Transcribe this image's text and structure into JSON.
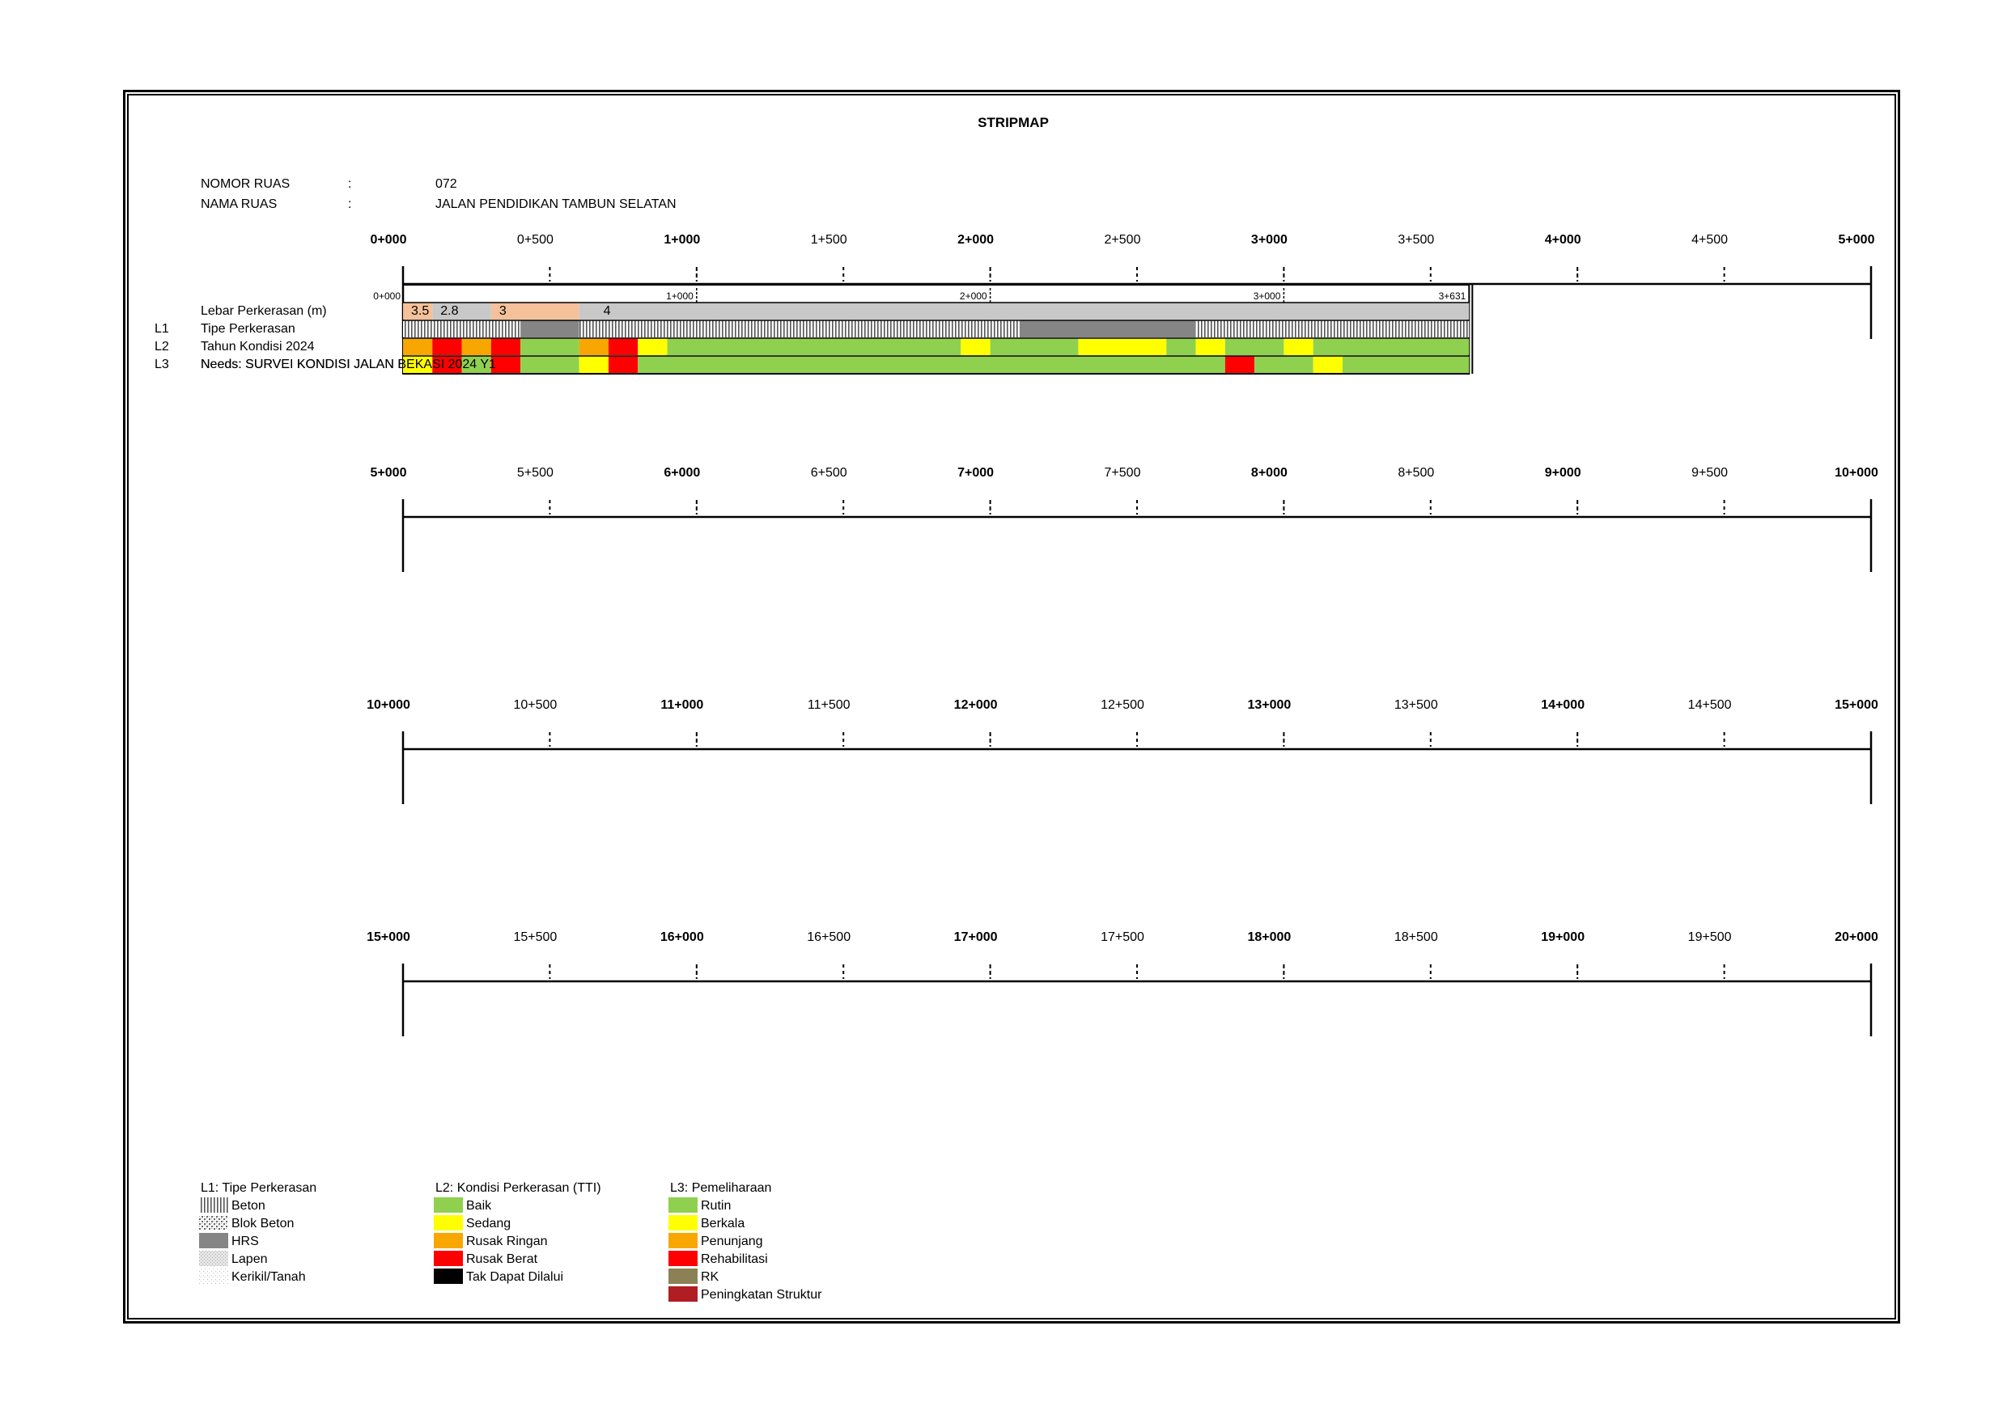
{
  "title": "STRIPMAP",
  "header": {
    "nomor_ruas_label": "NOMOR RUAS",
    "nomor_ruas_sep": ":",
    "nomor_ruas_value": "072",
    "nama_ruas_label": "NAMA RUAS",
    "nama_ruas_sep": ":",
    "nama_ruas_value": "JALAN PENDIDIKAN TAMBUN SELATAN"
  },
  "axis_rows": [
    {
      "labels": [
        "0+000",
        "0+500",
        "1+000",
        "1+500",
        "2+000",
        "2+500",
        "3+000",
        "3+500",
        "4+000",
        "4+500",
        "5+000"
      ]
    },
    {
      "labels": [
        "5+000",
        "5+500",
        "6+000",
        "6+500",
        "7+000",
        "7+500",
        "8+000",
        "8+500",
        "9+000",
        "9+500",
        "10+000"
      ]
    },
    {
      "labels": [
        "10+000",
        "10+500",
        "11+000",
        "11+500",
        "12+000",
        "12+500",
        "13+000",
        "13+500",
        "14+000",
        "14+500",
        "15+000"
      ]
    },
    {
      "labels": [
        "15+000",
        "15+500",
        "16+000",
        "16+500",
        "17+000",
        "17+500",
        "18+000",
        "18+500",
        "19+000",
        "19+500",
        "20+000"
      ]
    }
  ],
  "road": {
    "length_km": 3.631,
    "inner_ticks": [
      {
        "km": 0,
        "label": "0+000"
      },
      {
        "km": 1,
        "label": "1+000"
      },
      {
        "km": 2,
        "label": "2+000"
      },
      {
        "km": 3,
        "label": "3+000"
      },
      {
        "km": 3.631,
        "label": "3+631"
      }
    ],
    "rows": [
      {
        "code": "",
        "label": "Lebar Perkerasan (m)"
      },
      {
        "code": "L1",
        "label": "Tipe Perkerasan"
      },
      {
        "code": "L2",
        "label": "Tahun Kondisi 2024"
      },
      {
        "code": "L3",
        "label": "Needs: SURVEI KONDISI JALAN BEKASI 2024 Y1"
      }
    ],
    "width_segments": [
      {
        "from": 0,
        "to": 0.1,
        "value": "3.5",
        "color": "#f4c19a"
      },
      {
        "from": 0.1,
        "to": 0.3,
        "value": "2.8",
        "color": "#c8c8c8"
      },
      {
        "from": 0.3,
        "to": 0.6,
        "value": "3",
        "color": "#f4c19a"
      },
      {
        "from": 0.6,
        "to": 3.631,
        "value": "4",
        "color": "#c8c8c8"
      }
    ],
    "surface_segments": [
      {
        "from": 0,
        "to": 0.4,
        "type": "Beton"
      },
      {
        "from": 0.4,
        "to": 0.6,
        "type": "HRS"
      },
      {
        "from": 0.6,
        "to": 2.1,
        "type": "Beton"
      },
      {
        "from": 2.1,
        "to": 2.7,
        "type": "HRS"
      },
      {
        "from": 2.7,
        "to": 3.631,
        "type": "Beton"
      }
    ],
    "condition_segments": [
      {
        "from": 0,
        "to": 0.1,
        "status": "Rusak Ringan",
        "color": "#f7a700"
      },
      {
        "from": 0.1,
        "to": 0.2,
        "status": "Rusak Berat",
        "color": "#ff0000"
      },
      {
        "from": 0.2,
        "to": 0.3,
        "status": "Rusak Ringan",
        "color": "#f7a700"
      },
      {
        "from": 0.3,
        "to": 0.4,
        "status": "Rusak Berat",
        "color": "#ff0000"
      },
      {
        "from": 0.4,
        "to": 0.6,
        "status": "Baik",
        "color": "#8fd14f"
      },
      {
        "from": 0.6,
        "to": 0.7,
        "status": "Rusak Ringan",
        "color": "#f7a700"
      },
      {
        "from": 0.7,
        "to": 0.8,
        "status": "Rusak Berat",
        "color": "#ff0000"
      },
      {
        "from": 0.8,
        "to": 0.9,
        "status": "Sedang",
        "color": "#ffff00"
      },
      {
        "from": 0.9,
        "to": 1.9,
        "status": "Baik",
        "color": "#8fd14f"
      },
      {
        "from": 1.9,
        "to": 2.0,
        "status": "Sedang",
        "color": "#ffff00"
      },
      {
        "from": 2.0,
        "to": 2.3,
        "status": "Baik",
        "color": "#8fd14f"
      },
      {
        "from": 2.3,
        "to": 2.6,
        "status": "Sedang",
        "color": "#ffff00"
      },
      {
        "from": 2.6,
        "to": 2.7,
        "status": "Baik",
        "color": "#8fd14f"
      },
      {
        "from": 2.7,
        "to": 2.8,
        "status": "Sedang",
        "color": "#ffff00"
      },
      {
        "from": 2.8,
        "to": 3.0,
        "status": "Baik",
        "color": "#8fd14f"
      },
      {
        "from": 3.0,
        "to": 3.1,
        "status": "Sedang",
        "color": "#ffff00"
      },
      {
        "from": 3.1,
        "to": 3.631,
        "status": "Baik",
        "color": "#8fd14f"
      }
    ],
    "needs_segments": [
      {
        "from": 0,
        "to": 0.1,
        "status": "Berkala",
        "color": "#ffff00"
      },
      {
        "from": 0.1,
        "to": 0.2,
        "status": "Rehabilitasi",
        "color": "#ff0000"
      },
      {
        "from": 0.2,
        "to": 0.3,
        "status": "Rutin",
        "color": "#8fd14f"
      },
      {
        "from": 0.3,
        "to": 0.4,
        "status": "Rehabilitasi",
        "color": "#ff0000"
      },
      {
        "from": 0.4,
        "to": 0.6,
        "status": "Rutin",
        "color": "#8fd14f"
      },
      {
        "from": 0.6,
        "to": 0.7,
        "status": "Berkala",
        "color": "#ffff00"
      },
      {
        "from": 0.7,
        "to": 0.8,
        "status": "Rehabilitasi",
        "color": "#ff0000"
      },
      {
        "from": 0.8,
        "to": 2.8,
        "status": "Rutin",
        "color": "#8fd14f"
      },
      {
        "from": 2.8,
        "to": 2.9,
        "status": "Rehabilitasi",
        "color": "#ff0000"
      },
      {
        "from": 2.9,
        "to": 3.1,
        "status": "Rutin",
        "color": "#8fd14f"
      },
      {
        "from": 3.1,
        "to": 3.2,
        "status": "Berkala",
        "color": "#ffff00"
      },
      {
        "from": 3.2,
        "to": 3.631,
        "status": "Rutin",
        "color": "#8fd14f"
      }
    ]
  },
  "legend": {
    "l1": {
      "title": "L1: Tipe Perkerasan",
      "items": [
        {
          "label": "Beton",
          "pattern": "beton"
        },
        {
          "label": "Blok Beton",
          "pattern": "blok"
        },
        {
          "label": "HRS",
          "pattern": "hrs"
        },
        {
          "label": "Lapen",
          "pattern": "lapen"
        },
        {
          "label": "Kerikil/Tanah",
          "pattern": "kerikil"
        }
      ]
    },
    "l2": {
      "title": "L2: Kondisi Perkerasan (TTI)",
      "items": [
        {
          "label": "Baik",
          "color": "#8fd14f"
        },
        {
          "label": "Sedang",
          "color": "#ffff00"
        },
        {
          "label": "Rusak Ringan",
          "color": "#f7a700"
        },
        {
          "label": "Rusak Berat",
          "color": "#ff0000"
        },
        {
          "label": "Tak Dapat Dilalui",
          "color": "#000000"
        }
      ]
    },
    "l3": {
      "title": "L3: Pemeliharaan",
      "items": [
        {
          "label": "Rutin",
          "color": "#8fd14f"
        },
        {
          "label": "Berkala",
          "color": "#ffff00"
        },
        {
          "label": "Penunjang",
          "color": "#f7a700"
        },
        {
          "label": "Rehabilitasi",
          "color": "#ff0000"
        },
        {
          "label": "RK",
          "color": "#8b8155"
        },
        {
          "label": "Peningkatan Struktur",
          "color": "#b01d23"
        }
      ]
    }
  }
}
